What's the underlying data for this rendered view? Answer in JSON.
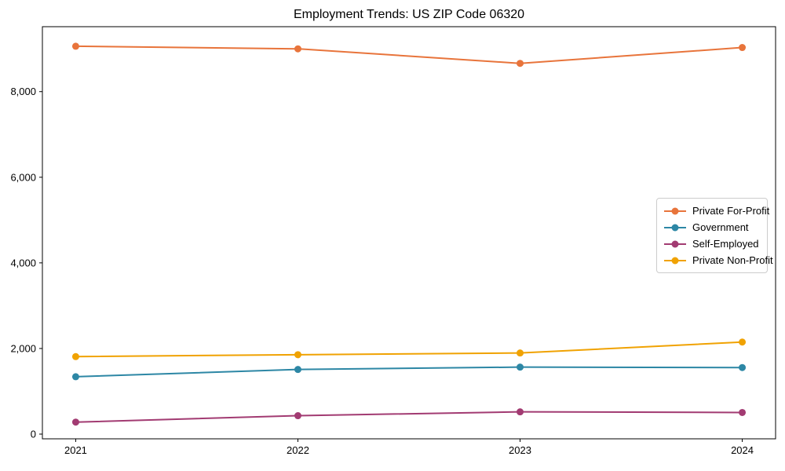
{
  "chart_data": {
    "type": "line",
    "title": "Employment Trends: US ZIP Code 06320",
    "xlabel": "",
    "ylabel": "",
    "x": [
      2021,
      2022,
      2023,
      2024
    ],
    "x_tick_labels": [
      "2021",
      "2022",
      "2023",
      "2024"
    ],
    "y_ticks": [
      0,
      2000,
      4000,
      6000,
      8000
    ],
    "y_tick_labels": [
      "0",
      "2,000",
      "4,000",
      "6,000",
      "8,000"
    ],
    "xlim": [
      2020.85,
      2024.15
    ],
    "ylim": [
      -110,
      9517
    ],
    "grid": false,
    "legend_position": "center right",
    "background_color": "#ffffff",
    "spine_color": "#000000",
    "series": [
      {
        "name": "Private For-Profit",
        "color": "#e8743b",
        "values": [
          9060,
          9000,
          8660,
          9030
        ]
      },
      {
        "name": "Government",
        "color": "#2d87a5",
        "values": [
          1340,
          1510,
          1565,
          1555
        ]
      },
      {
        "name": "Self-Employed",
        "color": "#a23b72",
        "values": [
          280,
          430,
          520,
          505
        ]
      },
      {
        "name": "Private Non-Profit",
        "color": "#f0a202",
        "values": [
          1810,
          1855,
          1895,
          2150
        ]
      }
    ]
  }
}
